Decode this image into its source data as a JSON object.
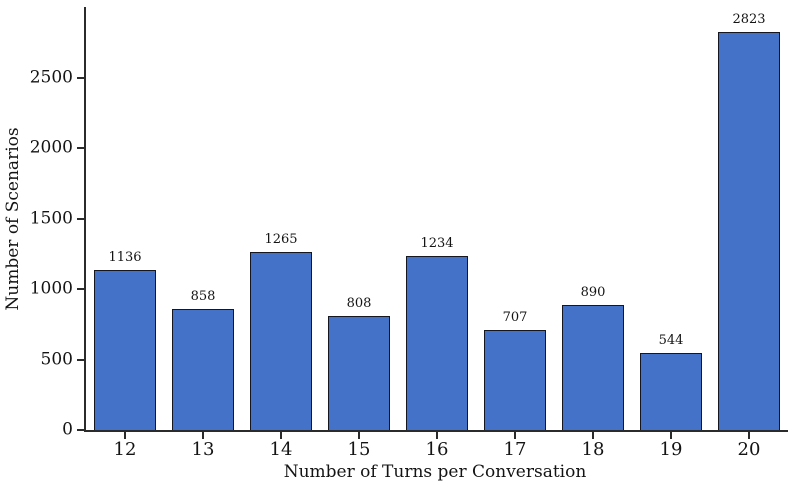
{
  "chart_data": {
    "type": "bar",
    "title": "",
    "xlabel": "Number of Turns per Conversation",
    "ylabel": "Number of Scenarios",
    "categories": [
      "12",
      "13",
      "14",
      "15",
      "16",
      "17",
      "18",
      "19",
      "20"
    ],
    "values": [
      1136,
      858,
      1265,
      808,
      1234,
      707,
      890,
      544,
      2823
    ],
    "value_labels_shown": true,
    "ylim": [
      0,
      3000
    ],
    "yticks": [
      0,
      500,
      1000,
      1500,
      2000,
      2500
    ],
    "grid": false,
    "legend": "none",
    "bar_fill_color": "#4372c8",
    "bar_edge_color": "#14171f",
    "axis_color": "#2b2b2b",
    "text_color": "#141414",
    "background_color": "#ffffff"
  }
}
